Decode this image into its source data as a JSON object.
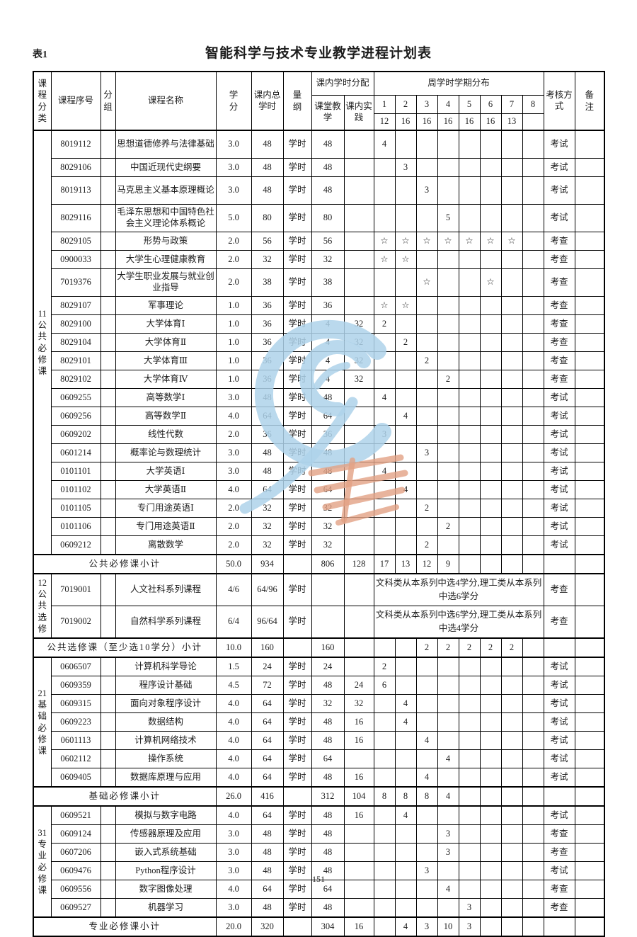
{
  "page": {
    "table_label": "表1",
    "title": "智能科学与技术专业教学进程计划表",
    "page_number": "151"
  },
  "header": {
    "course_category": "课程分类",
    "course_id": "课程序号",
    "group": "分组",
    "course_name": "课程名称",
    "credits": "学分",
    "total_hours": "课内总学时",
    "unit": "量纲",
    "hour_allocation": "课内学时分配",
    "classroom_teaching": "课堂教学",
    "inclass_practice": "课内实践",
    "weekly_distribution": "周学时学期分布",
    "semesters": [
      "1",
      "2",
      "3",
      "4",
      "5",
      "6",
      "7",
      "8"
    ],
    "semester_weeks": [
      "12",
      "16",
      "16",
      "16",
      "16",
      "16",
      "13",
      ""
    ],
    "exam_method": "考核方式",
    "notes": "备注"
  },
  "colors": {
    "border": "#000000",
    "text": "#1c1c1c",
    "watermark_blue": "#aed2ea",
    "watermark_orange": "#e2a184"
  },
  "sections": [
    {
      "category": "11公共必修课",
      "courses": [
        {
          "id": "8019112",
          "group": "",
          "name": "思想道德修养与法律基础",
          "credits": "3.0",
          "hours": "48",
          "unit": "学时",
          "teach": "48",
          "practice": "",
          "sems": [
            "4",
            "",
            "",
            "",
            "",
            "",
            "",
            ""
          ],
          "exam": "考试",
          "note": "",
          "tall": true
        },
        {
          "id": "8029106",
          "group": "",
          "name": "中国近现代史纲要",
          "credits": "3.0",
          "hours": "48",
          "unit": "学时",
          "teach": "48",
          "practice": "",
          "sems": [
            "",
            "3",
            "",
            "",
            "",
            "",
            "",
            ""
          ],
          "exam": "考试",
          "note": ""
        },
        {
          "id": "8019113",
          "group": "",
          "name": "马克思主义基本原理概论",
          "credits": "3.0",
          "hours": "48",
          "unit": "学时",
          "teach": "48",
          "practice": "",
          "sems": [
            "",
            "",
            "3",
            "",
            "",
            "",
            "",
            ""
          ],
          "exam": "考试",
          "note": "",
          "tall": true
        },
        {
          "id": "8029116",
          "group": "",
          "name": "毛泽东思想和中国特色社会主义理论体系概论",
          "credits": "5.0",
          "hours": "80",
          "unit": "学时",
          "teach": "80",
          "practice": "",
          "sems": [
            "",
            "",
            "",
            "5",
            "",
            "",
            "",
            ""
          ],
          "exam": "考试",
          "note": "",
          "tall": true
        },
        {
          "id": "8029105",
          "group": "",
          "name": "形势与政策",
          "credits": "2.0",
          "hours": "56",
          "unit": "学时",
          "teach": "56",
          "practice": "",
          "sems": [
            "☆",
            "☆",
            "☆",
            "☆",
            "☆",
            "☆",
            "☆",
            ""
          ],
          "exam": "考查",
          "note": ""
        },
        {
          "id": "0900033",
          "group": "",
          "name": "大学生心理健康教育",
          "credits": "2.0",
          "hours": "32",
          "unit": "学时",
          "teach": "32",
          "practice": "",
          "sems": [
            "☆",
            "☆",
            "",
            "",
            "",
            "",
            "",
            ""
          ],
          "exam": "考查",
          "note": ""
        },
        {
          "id": "7019376",
          "group": "",
          "name": "大学生职业发展与就业创业指导",
          "credits": "2.0",
          "hours": "38",
          "unit": "学时",
          "teach": "38",
          "practice": "",
          "sems": [
            "",
            "",
            "☆",
            "",
            "",
            "☆",
            "",
            ""
          ],
          "exam": "考查",
          "note": "",
          "tall": true
        },
        {
          "id": "8029107",
          "group": "",
          "name": "军事理论",
          "credits": "1.0",
          "hours": "36",
          "unit": "学时",
          "teach": "36",
          "practice": "",
          "sems": [
            "☆",
            "☆",
            "",
            "",
            "",
            "",
            "",
            ""
          ],
          "exam": "考查",
          "note": ""
        },
        {
          "id": "8029100",
          "group": "",
          "name": "大学体育Ⅰ",
          "credits": "1.0",
          "hours": "36",
          "unit": "学时",
          "teach": "4",
          "practice": "32",
          "sems": [
            "2",
            "",
            "",
            "",
            "",
            "",
            "",
            ""
          ],
          "exam": "考查",
          "note": ""
        },
        {
          "id": "8029104",
          "group": "",
          "name": "大学体育Ⅱ",
          "credits": "1.0",
          "hours": "36",
          "unit": "学时",
          "teach": "4",
          "practice": "32",
          "sems": [
            "",
            "2",
            "",
            "",
            "",
            "",
            "",
            ""
          ],
          "exam": "考查",
          "note": ""
        },
        {
          "id": "8029101",
          "group": "",
          "name": "大学体育Ⅲ",
          "credits": "1.0",
          "hours": "36",
          "unit": "学时",
          "teach": "4",
          "practice": "32",
          "sems": [
            "",
            "",
            "2",
            "",
            "",
            "",
            "",
            ""
          ],
          "exam": "考查",
          "note": ""
        },
        {
          "id": "8029102",
          "group": "",
          "name": "大学体育Ⅳ",
          "credits": "1.0",
          "hours": "36",
          "unit": "学时",
          "teach": "4",
          "practice": "32",
          "sems": [
            "",
            "",
            "",
            "2",
            "",
            "",
            "",
            ""
          ],
          "exam": "考查",
          "note": ""
        },
        {
          "id": "0609255",
          "group": "",
          "name": "高等数学Ⅰ",
          "credits": "3.0",
          "hours": "48",
          "unit": "学时",
          "teach": "48",
          "practice": "",
          "sems": [
            "4",
            "",
            "",
            "",
            "",
            "",
            "",
            ""
          ],
          "exam": "考试",
          "note": ""
        },
        {
          "id": "0609256",
          "group": "",
          "name": "高等数学Ⅱ",
          "credits": "4.0",
          "hours": "64",
          "unit": "学时",
          "teach": "64",
          "practice": "",
          "sems": [
            "",
            "4",
            "",
            "",
            "",
            "",
            "",
            ""
          ],
          "exam": "考试",
          "note": ""
        },
        {
          "id": "0609202",
          "group": "",
          "name": "线性代数",
          "credits": "2.0",
          "hours": "36",
          "unit": "学时",
          "teach": "36",
          "practice": "",
          "sems": [
            "3",
            "",
            "",
            "",
            "",
            "",
            "",
            ""
          ],
          "exam": "考试",
          "note": ""
        },
        {
          "id": "0601214",
          "group": "",
          "name": "概率论与数理统计",
          "credits": "3.0",
          "hours": "48",
          "unit": "学时",
          "teach": "48",
          "practice": "",
          "sems": [
            "",
            "",
            "3",
            "",
            "",
            "",
            "",
            ""
          ],
          "exam": "考试",
          "note": ""
        },
        {
          "id": "0101101",
          "group": "",
          "name": "大学英语Ⅰ",
          "credits": "3.0",
          "hours": "48",
          "unit": "学时",
          "teach": "48",
          "practice": "",
          "sems": [
            "4",
            "",
            "",
            "",
            "",
            "",
            "",
            ""
          ],
          "exam": "考试",
          "note": ""
        },
        {
          "id": "0101102",
          "group": "",
          "name": "大学英语Ⅱ",
          "credits": "4.0",
          "hours": "64",
          "unit": "学时",
          "teach": "64",
          "practice": "",
          "sems": [
            "",
            "4",
            "",
            "",
            "",
            "",
            "",
            ""
          ],
          "exam": "考试",
          "note": ""
        },
        {
          "id": "0101105",
          "group": "",
          "name": "专门用途英语Ⅰ",
          "credits": "2.0",
          "hours": "32",
          "unit": "学时",
          "teach": "32",
          "practice": "",
          "sems": [
            "",
            "",
            "2",
            "",
            "",
            "",
            "",
            ""
          ],
          "exam": "考试",
          "note": ""
        },
        {
          "id": "0101106",
          "group": "",
          "name": "专门用途英语Ⅱ",
          "credits": "2.0",
          "hours": "32",
          "unit": "学时",
          "teach": "32",
          "practice": "",
          "sems": [
            "",
            "",
            "",
            "2",
            "",
            "",
            "",
            ""
          ],
          "exam": "考试",
          "note": ""
        },
        {
          "id": "0609212",
          "group": "",
          "name": "离散数学",
          "credits": "2.0",
          "hours": "32",
          "unit": "学时",
          "teach": "32",
          "practice": "",
          "sems": [
            "",
            "",
            "2",
            "",
            "",
            "",
            "",
            ""
          ],
          "exam": "考试",
          "note": ""
        }
      ],
      "subtotal": {
        "label": "公共必修课小计",
        "credits": "50.0",
        "hours": "934",
        "unit": "",
        "teach": "806",
        "practice": "128",
        "sems": [
          "17",
          "13",
          "12",
          "9",
          "",
          "",
          "",
          ""
        ],
        "exam": "",
        "note": ""
      }
    },
    {
      "category": "12公共选修",
      "courses": [
        {
          "id": "7019001",
          "group": "",
          "name": "人文社科系列课程",
          "credits": "4/6",
          "hours": "64/96",
          "unit": "学时",
          "teach": "",
          "practice": "",
          "span_note": "文科类从本系列中选4学分,理工类从本系列中选6学分",
          "exam": "考查",
          "note": "",
          "wide": true
        },
        {
          "id": "7019002",
          "group": "",
          "name": "自然科学系列课程",
          "credits": "6/4",
          "hours": "96/64",
          "unit": "学时",
          "teach": "",
          "practice": "",
          "span_note": "文科类从本系列中选6学分,理工类从本系列中选4学分",
          "exam": "考查",
          "note": "",
          "wide": true
        }
      ],
      "subtotal": {
        "label": "公共选修课（至少选10学分）小计",
        "credits": "10.0",
        "hours": "160",
        "unit": "",
        "teach": "160",
        "practice": "",
        "sems": [
          "",
          "",
          "2",
          "2",
          "2",
          "2",
          "2",
          ""
        ],
        "exam": "",
        "note": ""
      }
    },
    {
      "category": "21基础必修课",
      "courses": [
        {
          "id": "0606507",
          "group": "",
          "name": "计算机科学导论",
          "credits": "1.5",
          "hours": "24",
          "unit": "学时",
          "teach": "24",
          "practice": "",
          "sems": [
            "2",
            "",
            "",
            "",
            "",
            "",
            "",
            ""
          ],
          "exam": "考试",
          "note": ""
        },
        {
          "id": "0609359",
          "group": "",
          "name": "程序设计基础",
          "credits": "4.5",
          "hours": "72",
          "unit": "学时",
          "teach": "48",
          "practice": "24",
          "sems": [
            "6",
            "",
            "",
            "",
            "",
            "",
            "",
            ""
          ],
          "exam": "考试",
          "note": ""
        },
        {
          "id": "0609315",
          "group": "",
          "name": "面向对象程序设计",
          "credits": "4.0",
          "hours": "64",
          "unit": "学时",
          "teach": "32",
          "practice": "32",
          "sems": [
            "",
            "4",
            "",
            "",
            "",
            "",
            "",
            ""
          ],
          "exam": "考试",
          "note": ""
        },
        {
          "id": "0609223",
          "group": "",
          "name": "数据结构",
          "credits": "4.0",
          "hours": "64",
          "unit": "学时",
          "teach": "48",
          "practice": "16",
          "sems": [
            "",
            "4",
            "",
            "",
            "",
            "",
            "",
            ""
          ],
          "exam": "考试",
          "note": ""
        },
        {
          "id": "0601113",
          "group": "",
          "name": "计算机网络技术",
          "credits": "4.0",
          "hours": "64",
          "unit": "学时",
          "teach": "48",
          "practice": "16",
          "sems": [
            "",
            "",
            "4",
            "",
            "",
            "",
            "",
            ""
          ],
          "exam": "考试",
          "note": ""
        },
        {
          "id": "0602112",
          "group": "",
          "name": "操作系统",
          "credits": "4.0",
          "hours": "64",
          "unit": "学时",
          "teach": "64",
          "practice": "",
          "sems": [
            "",
            "",
            "",
            "4",
            "",
            "",
            "",
            ""
          ],
          "exam": "考试",
          "note": ""
        },
        {
          "id": "0609405",
          "group": "",
          "name": "数据库原理与应用",
          "credits": "4.0",
          "hours": "64",
          "unit": "学时",
          "teach": "48",
          "practice": "16",
          "sems": [
            "",
            "",
            "4",
            "",
            "",
            "",
            "",
            ""
          ],
          "exam": "考试",
          "note": ""
        }
      ],
      "subtotal": {
        "label": "基础必修课小计",
        "credits": "26.0",
        "hours": "416",
        "unit": "",
        "teach": "312",
        "practice": "104",
        "sems": [
          "8",
          "8",
          "8",
          "4",
          "",
          "",
          "",
          ""
        ],
        "exam": "",
        "note": ""
      }
    },
    {
      "category": "31专业必修课",
      "courses": [
        {
          "id": "0609521",
          "group": "",
          "name": "模拟与数字电路",
          "credits": "4.0",
          "hours": "64",
          "unit": "学时",
          "teach": "48",
          "practice": "16",
          "sems": [
            "",
            "4",
            "",
            "",
            "",
            "",
            "",
            ""
          ],
          "exam": "考试",
          "note": ""
        },
        {
          "id": "0609124",
          "group": "",
          "name": "传感器原理及应用",
          "credits": "3.0",
          "hours": "48",
          "unit": "学时",
          "teach": "48",
          "practice": "",
          "sems": [
            "",
            "",
            "",
            "3",
            "",
            "",
            "",
            ""
          ],
          "exam": "考查",
          "note": ""
        },
        {
          "id": "0607206",
          "group": "",
          "name": "嵌入式系统基础",
          "credits": "3.0",
          "hours": "48",
          "unit": "学时",
          "teach": "48",
          "practice": "",
          "sems": [
            "",
            "",
            "",
            "3",
            "",
            "",
            "",
            ""
          ],
          "exam": "考查",
          "note": ""
        },
        {
          "id": "0609476",
          "group": "",
          "name": "Python程序设计",
          "credits": "3.0",
          "hours": "48",
          "unit": "学时",
          "teach": "48",
          "practice": "",
          "sems": [
            "",
            "",
            "3",
            "",
            "",
            "",
            "",
            ""
          ],
          "exam": "考试",
          "note": ""
        },
        {
          "id": "0609556",
          "group": "",
          "name": "数字图像处理",
          "credits": "4.0",
          "hours": "64",
          "unit": "学时",
          "teach": "64",
          "practice": "",
          "sems": [
            "",
            "",
            "",
            "4",
            "",
            "",
            "",
            ""
          ],
          "exam": "考查",
          "note": ""
        },
        {
          "id": "0609527",
          "group": "",
          "name": "机器学习",
          "credits": "3.0",
          "hours": "48",
          "unit": "学时",
          "teach": "48",
          "practice": "",
          "sems": [
            "",
            "",
            "",
            "",
            "3",
            "",
            "",
            ""
          ],
          "exam": "考查",
          "note": ""
        }
      ],
      "subtotal": {
        "label": "专业必修课小计",
        "credits": "20.0",
        "hours": "320",
        "unit": "",
        "teach": "304",
        "practice": "16",
        "sems": [
          "",
          "4",
          "3",
          "10",
          "3",
          "",
          "",
          ""
        ],
        "exam": "",
        "note": ""
      }
    }
  ]
}
